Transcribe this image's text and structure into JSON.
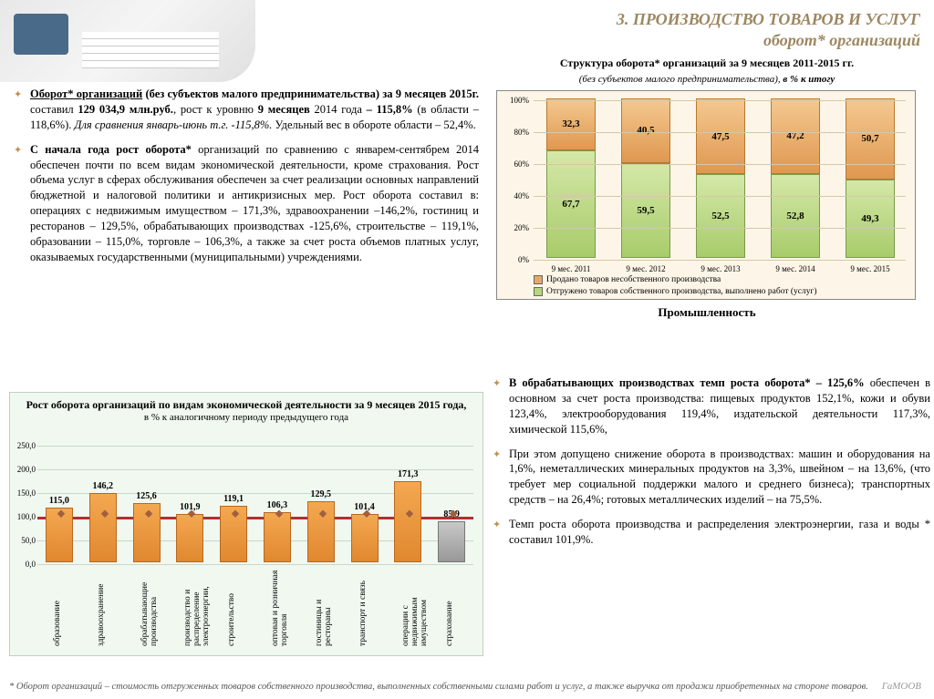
{
  "header": {
    "title_l1": "3.  ПРОИЗВОДСТВО ТОВАРОВ И УСЛУГ",
    "title_l2": "оборот* организаций"
  },
  "left_paras": [
    "<u><b>Оборот* организаций</b></u> <b>(без субъектов малого предпринимательства) за 9 месяцев 2015г.</b> составил <b>129 034,9 млн.руб.</b>, рост к уровню <b>9 месяцев</b> 2014 года <b>– 115,8%</b> (в области – 118,6%). <i>Для сравнения январь-июнь т.г. -115,8%.</i> Удельный вес в обороте области – 52,4%.",
    "<b>С начала года рост оборота*</b> организаций по сравнению с январем-сентябрем 2014 обеспечен почти по всем видам экономической деятельности, кроме страхования. Рост объема услуг в сферах обслуживания обеспечен за счет реализации основных направлений бюджетной и налоговой политики и антикризисных мер. Рост оборота составил в: операциях с недвижимым имуществом – 171,3%, здравоохранении –146,2%, гостиниц и ресторанов – 129,5%, обрабатывающих производствах -125,6%, строительстве – 119,1%, образовании – 115,0%, торговле – 106,3%, а также за счет роста объемов платных услуг, оказываемых государственными (муниципальными) учреждениями."
  ],
  "right_paras": [
    "<b>В обрабатывающих производствах темп роста оборота* – 125,6%</b> обеспечен в основном за счет роста производства: пищевых продуктов 152,1%, кожи и обуви 123,4%, электрооборудования 119,4%, издательской деятельности 117,3%, химической 115,6%,",
    "При этом допущено снижение оборота в производствах: машин и оборудования на 1,6%, неметаллических минеральных продуктов на 3,3%, швейном – на 13,6%, (что требует мер социальной поддержки малого и среднего бизнеса); транспортных средств – на 26,4%; готовых металлических изделий – на 75,5%.",
    "Темп роста оборота производства и распределения электроэнергии, газа и воды * составил 101,9%."
  ],
  "stacked": {
    "title": "Структура оборота* организаций за  9 месяцев 2011-2015 гг.",
    "sub": "(без субъектов малого предпринимательства), <i><b>в % к итогу</b></i>",
    "categories": [
      "9 мес. 2011",
      "9 мес. 2012",
      "9 мес. 2013",
      "9 мес. 2014",
      "9 мес. 2015"
    ],
    "bottom_vals": [
      67.7,
      59.5,
      52.5,
      52.8,
      49.3
    ],
    "top_vals": [
      32.3,
      40.5,
      47.5,
      47.2,
      50.7
    ],
    "legend_top": "Продано товаров несобственного производства",
    "legend_bottom": "Отгружено товаров собственного производства, выполнено работ (услуг)",
    "yticks": [
      0,
      20,
      40,
      60,
      80,
      100
    ],
    "bottom_color": "#b8d678",
    "top_color": "#e8a860"
  },
  "mid_title": "Промышленность",
  "bar": {
    "title": "Рост оборота организаций по видам экономической деятельности за  9 месяцев 2015 года,",
    "sub": "в % к  аналогичному периоду предыдущего года",
    "categories": [
      "образование",
      "здравоохранение",
      "обрабатывающие производства",
      "производство и распределение электроэнергии,",
      "строительство",
      "оптовая и розничная торговля",
      "гостиницы и рестораны",
      "транспорт и связь",
      "операции с недвижимым имуществом",
      "страхование"
    ],
    "values": [
      115.0,
      146.2,
      125.6,
      101.9,
      119.1,
      106.3,
      129.5,
      101.4,
      171.3,
      85.9
    ],
    "yticks": [
      0,
      50.0,
      100.0,
      150.0,
      200.0,
      250.0
    ],
    "ymax": 250,
    "refline": 100,
    "bar_color": "#e89840",
    "gray_color": "#a8a8a8"
  },
  "footnote": "* Оборот организаций – стоимость отгруженных товаров собственного производства, выполненных собственными силами работ и услуг, а также выручка от продажи приобретенных на стороне товаров.",
  "brand": "ГаМООВ"
}
